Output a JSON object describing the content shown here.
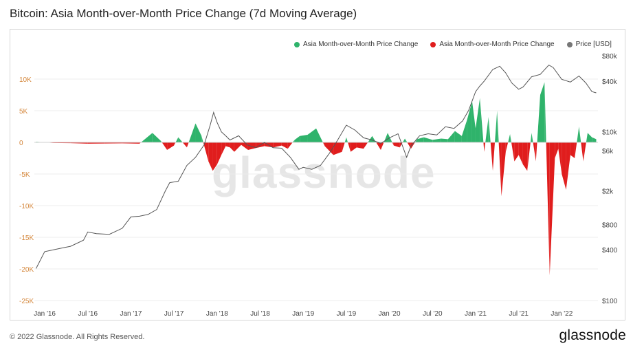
{
  "header": {
    "title": "Bitcoin: Asia Month-over-Month Price Change (7d Moving Average)"
  },
  "footer": {
    "copyright": "© 2022 Glassnode. All Rights Reserved.",
    "brand": "glassnode"
  },
  "watermark": "glassnode",
  "colors": {
    "positive": "#2fb36b",
    "negative": "#e01d1d",
    "price": "#555555",
    "left_axis": "#d4863a",
    "grid": "#ececec"
  },
  "chart_data": {
    "type": "area",
    "legend_placement": "top-right",
    "legend": [
      {
        "name": "Asia Month-over-Month Price Change",
        "color": "#2fb36b"
      },
      {
        "name": "Asia Month-over-Month Price Change",
        "color": "#e01d1d"
      },
      {
        "name": "Price [USD]",
        "color": "#777777"
      }
    ],
    "x_ticks": [
      "Jan '16",
      "Jul '16",
      "Jan '17",
      "Jul '17",
      "Jan '18",
      "Jul '18",
      "Jan '19",
      "Jul '19",
      "Jan '20",
      "Jul '20",
      "Jan '21",
      "Jul '21",
      "Jan '22"
    ],
    "y_left": {
      "ticks": [
        10000,
        5000,
        0,
        -5000,
        -10000,
        -15000,
        -20000,
        -25000
      ],
      "labels": [
        "10K",
        "5K",
        "0",
        "-5K",
        "-10K",
        "-15K",
        "-20K",
        "-25K"
      ],
      "range": [
        -25000,
        15000
      ]
    },
    "y_right": {
      "scale": "log",
      "ticks": [
        80000,
        40000,
        10000,
        6000,
        2000,
        800,
        400,
        100
      ],
      "labels": [
        "$80k",
        "$40k",
        "$10k",
        "$6k",
        "$2k",
        "$800",
        "$400",
        "$100"
      ],
      "range": [
        100,
        80000
      ]
    },
    "price_series": {
      "name": "Price [USD]",
      "x": [
        2015.9,
        2016.0,
        2016.1,
        2016.2,
        2016.3,
        2016.45,
        2016.5,
        2016.6,
        2016.75,
        2016.9,
        2017.0,
        2017.1,
        2017.2,
        2017.3,
        2017.4,
        2017.45,
        2017.55,
        2017.65,
        2017.75,
        2017.85,
        2017.92,
        2017.96,
        2018.0,
        2018.05,
        2018.1,
        2018.15,
        2018.25,
        2018.35,
        2018.45,
        2018.55,
        2018.65,
        2018.75,
        2018.85,
        2018.95,
        2019.0,
        2019.1,
        2019.2,
        2019.3,
        2019.4,
        2019.5,
        2019.6,
        2019.7,
        2019.8,
        2019.9,
        2020.0,
        2020.1,
        2020.2,
        2020.25,
        2020.35,
        2020.45,
        2020.55,
        2020.65,
        2020.75,
        2020.85,
        2020.92,
        2021.0,
        2021.05,
        2021.1,
        2021.2,
        2021.28,
        2021.35,
        2021.42,
        2021.5,
        2021.55,
        2021.65,
        2021.75,
        2021.85,
        2021.9,
        2022.0,
        2022.1,
        2022.2,
        2022.28,
        2022.35,
        2022.4
      ],
      "values": [
        240,
        380,
        400,
        420,
        440,
        520,
        650,
        620,
        610,
        720,
        980,
        1000,
        1050,
        1200,
        2000,
        2500,
        2600,
        4000,
        5000,
        7000,
        12000,
        17000,
        13000,
        10000,
        9000,
        8000,
        9000,
        7000,
        6500,
        7500,
        6500,
        6400,
        5000,
        3600,
        3800,
        3600,
        4000,
        5500,
        8000,
        12000,
        10500,
        8500,
        8000,
        7300,
        8500,
        9500,
        5000,
        6800,
        9000,
        9500,
        9200,
        11500,
        11000,
        13500,
        18000,
        30000,
        35000,
        40000,
        55000,
        60000,
        50000,
        38000,
        32000,
        34000,
        45000,
        48000,
        62000,
        58000,
        42000,
        39000,
        46000,
        38000,
        30000,
        29000
      ]
    },
    "change_series": {
      "name": "Asia Month-over-Month Price Change",
      "x": [
        2015.9,
        2016.1,
        2016.3,
        2016.5,
        2016.7,
        2016.9,
        2017.1,
        2017.25,
        2017.35,
        2017.42,
        2017.5,
        2017.55,
        2017.65,
        2017.75,
        2017.82,
        2017.9,
        2017.95,
        2018.0,
        2018.05,
        2018.1,
        2018.15,
        2018.2,
        2018.28,
        2018.36,
        2018.45,
        2018.55,
        2018.65,
        2018.75,
        2018.82,
        2018.9,
        2018.96,
        2019.05,
        2019.15,
        2019.25,
        2019.35,
        2019.45,
        2019.5,
        2019.55,
        2019.62,
        2019.7,
        2019.8,
        2019.9,
        2019.98,
        2020.05,
        2020.12,
        2020.18,
        2020.25,
        2020.32,
        2020.4,
        2020.5,
        2020.6,
        2020.68,
        2020.76,
        2020.84,
        2020.9,
        2020.96,
        2021.0,
        2021.05,
        2021.1,
        2021.15,
        2021.2,
        2021.25,
        2021.3,
        2021.35,
        2021.4,
        2021.45,
        2021.5,
        2021.55,
        2021.6,
        2021.65,
        2021.7,
        2021.75,
        2021.8,
        2021.86,
        2021.92,
        2021.96,
        2022.0,
        2022.05,
        2022.1,
        2022.15,
        2022.2,
        2022.25,
        2022.3,
        2022.35,
        2022.4
      ],
      "values": [
        100,
        -100,
        -120,
        -200,
        -180,
        -150,
        -200,
        1500,
        200,
        -1200,
        -500,
        800,
        -800,
        3000,
        1000,
        -3000,
        -4500,
        -3500,
        -2000,
        -600,
        -800,
        -1500,
        -400,
        -1200,
        -900,
        -600,
        -800,
        -500,
        -1000,
        400,
        1000,
        1200,
        2200,
        -600,
        -2000,
        -1500,
        800,
        -1500,
        -800,
        -1000,
        1000,
        -1200,
        1500,
        -500,
        -800,
        600,
        -1000,
        500,
        800,
        400,
        600,
        500,
        1800,
        1000,
        3500,
        6500,
        2200,
        7000,
        -1500,
        4000,
        -4500,
        5000,
        -8500,
        -1500,
        1300,
        -3000,
        -2000,
        -3500,
        -4500,
        1500,
        -3000,
        7500,
        9500,
        -21000,
        -2500,
        -1000,
        -5000,
        -7500,
        -2000,
        -2500,
        2500,
        -3000,
        1500,
        800,
        500
      ]
    }
  }
}
